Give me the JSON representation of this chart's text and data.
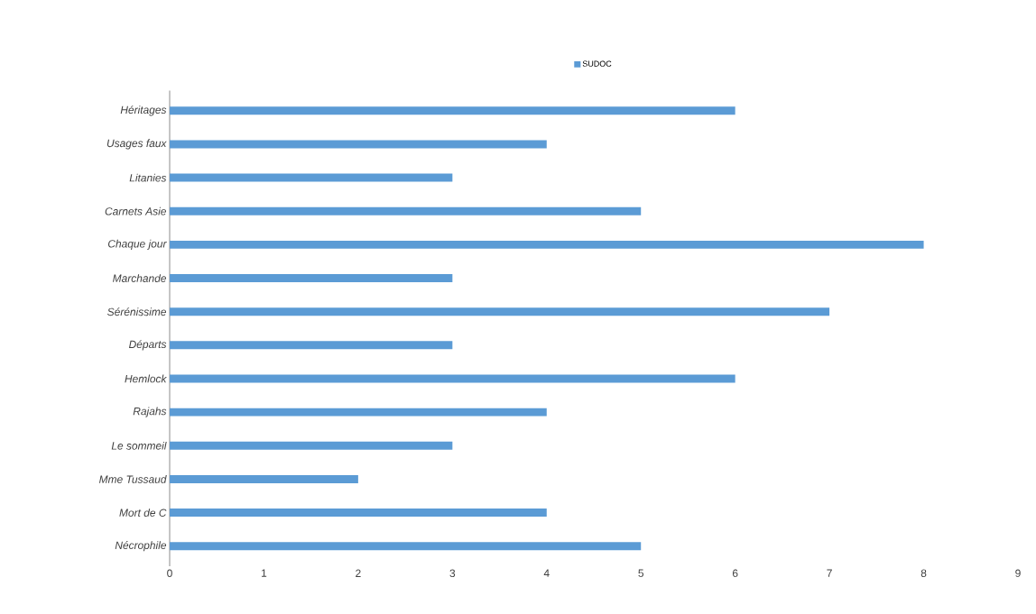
{
  "chart_data": {
    "type": "bar",
    "orientation": "horizontal",
    "categories": [
      "Héritages",
      "Usages faux",
      "Litanies",
      "Carnets Asie",
      "Chaque jour",
      "Marchande",
      "Sérénissime",
      "Départs",
      "Hemlock",
      "Rajahs",
      "Le sommeil",
      "Mme Tussaud",
      "Mort de C",
      "Nécrophile"
    ],
    "series": [
      {
        "name": "SUDOC",
        "color": "#5b9bd5",
        "values": [
          6,
          4,
          3,
          5,
          8,
          3,
          7,
          3,
          6,
          4,
          3,
          2,
          4,
          5
        ]
      }
    ],
    "xlim": [
      0,
      9
    ],
    "xticks": [
      0,
      1,
      2,
      3,
      4,
      5,
      6,
      7,
      8,
      9
    ],
    "grid": false,
    "legend": "top"
  }
}
